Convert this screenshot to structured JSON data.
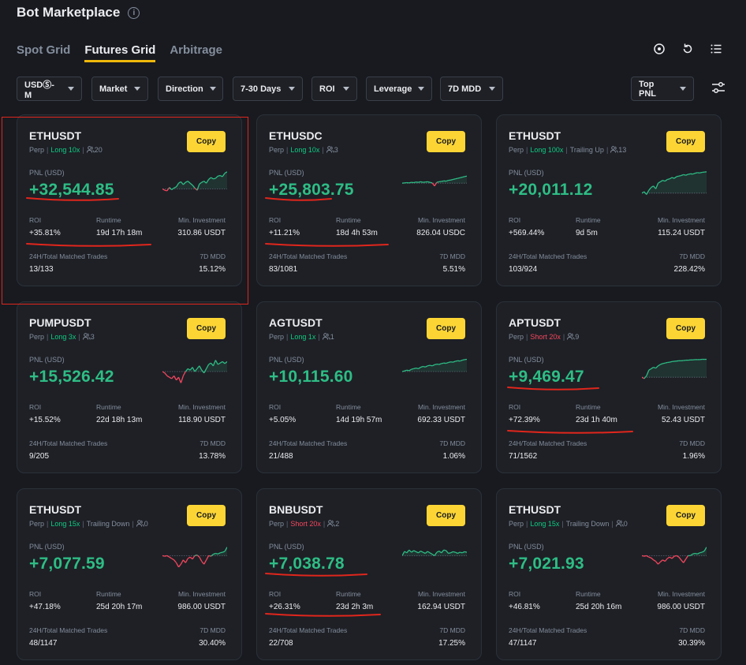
{
  "header": {
    "title": "Bot Marketplace",
    "info_icon": "info-icon"
  },
  "tabs": [
    {
      "label": "Spot Grid",
      "active": false
    },
    {
      "label": "Futures Grid",
      "active": true
    },
    {
      "label": "Arbitrage",
      "active": false
    }
  ],
  "tools": [
    "target-icon",
    "refresh-icon",
    "list-icon"
  ],
  "filters": {
    "market_type": "USDⓈ-M",
    "market": "Market",
    "direction": "Direction",
    "period": "7-30 Days",
    "roi": "ROI",
    "leverage": "Leverage",
    "mdd": "7D MDD",
    "sort": "Top PNL"
  },
  "labels": {
    "copy": "Copy",
    "perp": "Perp",
    "pnl": "PNL (USD)",
    "roi": "ROI",
    "runtime": "Runtime",
    "min_investment": "Min. Investment",
    "trades": "24H/Total Matched Trades",
    "mdd": "7D MDD"
  },
  "colors": {
    "accent": "#fcd535",
    "positive": "#2ebd85",
    "negative": "#f6465d",
    "annotation": "#e0261c"
  },
  "cards": [
    {
      "symbol": "ETHUSDT",
      "direction": "Long 10x",
      "direction_type": "long",
      "extra": "",
      "copiers": "20",
      "pnl": "+32,544.85",
      "roi": "+35.81%",
      "runtime": "19d 17h 18m",
      "min_investment": "310.86 USDT",
      "trades": "13/133",
      "mdd": "15.12%",
      "spark": [
        0.35,
        0.3,
        0.28,
        0.4,
        0.32,
        0.38,
        0.42,
        0.55,
        0.6,
        0.5,
        0.58,
        0.62,
        0.55,
        0.48,
        0.38,
        0.3,
        0.52,
        0.58,
        0.62,
        0.55,
        0.68,
        0.75,
        0.7,
        0.72,
        0.8,
        0.82,
        0.78,
        0.9,
        0.95
      ]
    },
    {
      "symbol": "ETHUSDC",
      "direction": "Long 10x",
      "direction_type": "long",
      "extra": "",
      "copiers": "3",
      "pnl": "+25,803.75",
      "roi": "+11.21%",
      "runtime": "18d 4h 53m",
      "min_investment": "826.04 USDC",
      "trades": "83/1081",
      "mdd": "5.51%",
      "spark": [
        0.55,
        0.56,
        0.57,
        0.56,
        0.58,
        0.57,
        0.59,
        0.58,
        0.6,
        0.58,
        0.59,
        0.6,
        0.58,
        0.56,
        0.45,
        0.58,
        0.6,
        0.61,
        0.63,
        0.62,
        0.65,
        0.66,
        0.68,
        0.7,
        0.72,
        0.74,
        0.76,
        0.78,
        0.8
      ]
    },
    {
      "symbol": "ETHUSDT",
      "direction": "Long 100x",
      "direction_type": "long",
      "extra": "Trailing Up",
      "copiers": "13",
      "pnl": "+20,011.12",
      "roi": "+569.44%",
      "runtime": "9d 5m",
      "min_investment": "115.24 USDT",
      "trades": "103/924",
      "mdd": "228.42%",
      "spark": [
        0.2,
        0.25,
        0.15,
        0.3,
        0.4,
        0.45,
        0.35,
        0.55,
        0.6,
        0.65,
        0.62,
        0.68,
        0.7,
        0.75,
        0.72,
        0.78,
        0.8,
        0.82,
        0.85,
        0.83,
        0.86,
        0.88,
        0.87,
        0.9,
        0.92,
        0.91,
        0.93,
        0.94,
        0.95
      ]
    },
    {
      "symbol": "PUMPUSDT",
      "direction": "Long 3x",
      "direction_type": "long",
      "extra": "",
      "copiers": "3",
      "pnl": "+15,526.42",
      "roi": "+15.52%",
      "runtime": "22d 18h 13m",
      "min_investment": "118.90 USDT",
      "trades": "9/205",
      "mdd": "13.78%",
      "spark": [
        0.5,
        0.45,
        0.35,
        0.3,
        0.25,
        0.35,
        0.2,
        0.3,
        0.1,
        0.35,
        0.5,
        0.6,
        0.55,
        0.65,
        0.5,
        0.6,
        0.7,
        0.55,
        0.45,
        0.6,
        0.75,
        0.8,
        0.7,
        0.9,
        0.75,
        0.8,
        0.85,
        0.78,
        0.85
      ]
    },
    {
      "symbol": "AGTUSDT",
      "direction": "Long 1x",
      "direction_type": "long",
      "extra": "",
      "copiers": "1",
      "pnl": "+10,115.60",
      "roi": "+5.05%",
      "runtime": "14d 19h 57m",
      "min_investment": "692.33 USDT",
      "trades": "21/488",
      "mdd": "1.06%",
      "spark": [
        0.5,
        0.52,
        0.55,
        0.53,
        0.58,
        0.6,
        0.62,
        0.6,
        0.65,
        0.68,
        0.66,
        0.7,
        0.72,
        0.7,
        0.74,
        0.76,
        0.75,
        0.78,
        0.8,
        0.79,
        0.82,
        0.84,
        0.83,
        0.86,
        0.88,
        0.87,
        0.9,
        0.92,
        0.93
      ]
    },
    {
      "symbol": "APTUSDT",
      "direction": "Short 20x",
      "direction_type": "short",
      "extra": "",
      "copiers": "9",
      "pnl": "+9,469.47",
      "roi": "+72.39%",
      "runtime": "23d 1h 40m",
      "min_investment": "52.43 USDT",
      "trades": "71/1562",
      "mdd": "1.96%",
      "spark": [
        0.3,
        0.25,
        0.35,
        0.55,
        0.6,
        0.65,
        0.62,
        0.7,
        0.75,
        0.78,
        0.8,
        0.82,
        0.83,
        0.85,
        0.86,
        0.87,
        0.88,
        0.88,
        0.89,
        0.9,
        0.9,
        0.91,
        0.91,
        0.92,
        0.92,
        0.92,
        0.93,
        0.93,
        0.93
      ]
    },
    {
      "symbol": "ETHUSDT",
      "direction": "Long 15x",
      "direction_type": "long",
      "extra": "Trailing Down",
      "copiers": "0",
      "pnl": "+7,077.59",
      "roi": "+47.18%",
      "runtime": "25d 20h 17m",
      "min_investment": "986.00 USDT",
      "trades": "48/1147",
      "mdd": "30.40%",
      "spark": [
        0.6,
        0.58,
        0.6,
        0.55,
        0.5,
        0.45,
        0.35,
        0.2,
        0.3,
        0.45,
        0.35,
        0.5,
        0.55,
        0.48,
        0.6,
        0.62,
        0.55,
        0.4,
        0.3,
        0.45,
        0.6,
        0.58,
        0.65,
        0.68,
        0.66,
        0.7,
        0.72,
        0.75,
        0.9
      ]
    },
    {
      "symbol": "BNBUSDT",
      "direction": "Short 20x",
      "direction_type": "short",
      "extra": "",
      "copiers": "2",
      "pnl": "+7,038.78",
      "roi": "+26.31%",
      "runtime": "23d 2h 3m",
      "min_investment": "162.94 USDT",
      "trades": "22/708",
      "mdd": "17.25%",
      "spark": [
        0.6,
        0.75,
        0.7,
        0.8,
        0.72,
        0.78,
        0.74,
        0.7,
        0.76,
        0.72,
        0.68,
        0.75,
        0.7,
        0.65,
        0.6,
        0.72,
        0.76,
        0.7,
        0.8,
        0.78,
        0.68,
        0.7,
        0.74,
        0.72,
        0.68,
        0.72,
        0.7,
        0.74,
        0.72
      ]
    },
    {
      "symbol": "ETHUSDT",
      "direction": "Long 15x",
      "direction_type": "long",
      "extra": "Trailing Down",
      "copiers": "0",
      "pnl": "+7,021.93",
      "roi": "+46.81%",
      "runtime": "25d 20h 16m",
      "min_investment": "986.00 USDT",
      "trades": "47/1147",
      "mdd": "30.39%",
      "spark": [
        0.6,
        0.58,
        0.6,
        0.55,
        0.52,
        0.45,
        0.4,
        0.3,
        0.38,
        0.45,
        0.4,
        0.5,
        0.55,
        0.5,
        0.58,
        0.6,
        0.55,
        0.45,
        0.35,
        0.48,
        0.6,
        0.6,
        0.66,
        0.68,
        0.66,
        0.7,
        0.72,
        0.76,
        0.9
      ]
    }
  ]
}
